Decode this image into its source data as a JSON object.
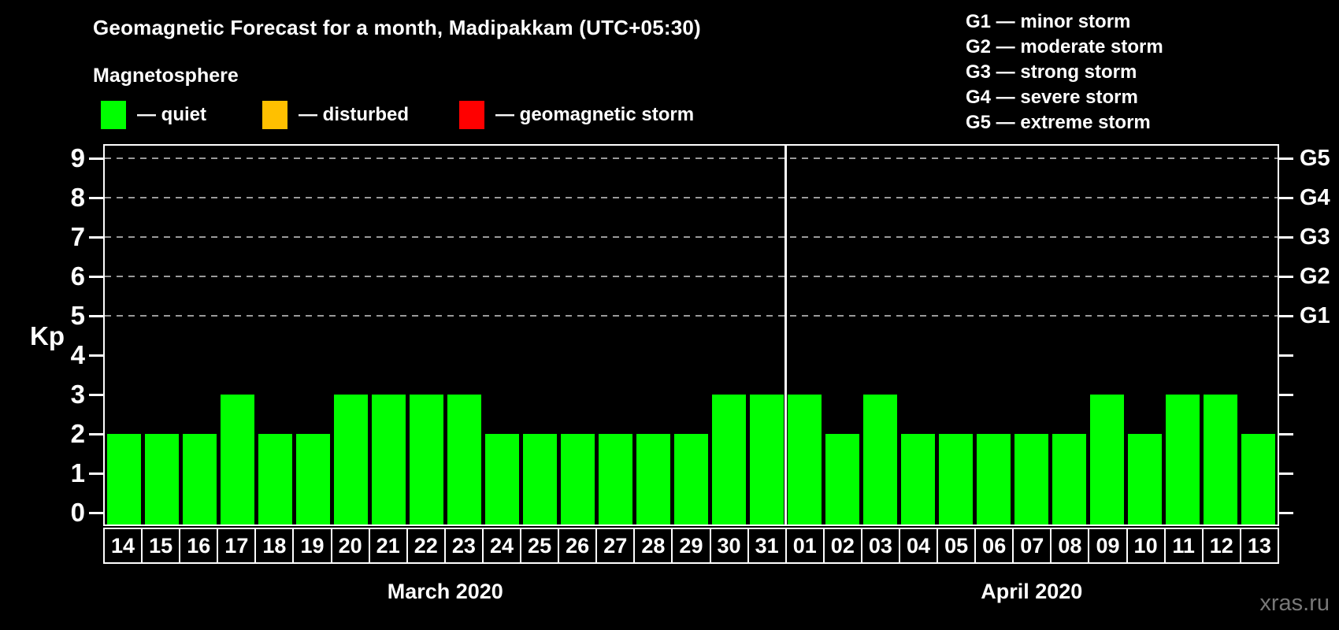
{
  "header": {
    "title": "Geomagnetic Forecast for a month, Madipakkam (UTC+05:30)",
    "subtitle": "Magnetosphere"
  },
  "legend": {
    "items": [
      {
        "name": "quiet",
        "color": "#00ff00",
        "label": "— quiet"
      },
      {
        "name": "disturbed",
        "color": "#ffc000",
        "label": "— disturbed"
      },
      {
        "name": "geomagnetic-storm",
        "color": "#ff0000",
        "label": "— geomagnetic storm"
      }
    ]
  },
  "g_scale_legend": {
    "lines": [
      "G1 — minor storm",
      "G2 — moderate storm",
      "G3 — strong storm",
      "G4 — severe storm",
      "G5 — extreme storm"
    ]
  },
  "axis": {
    "ylabel": "Kp"
  },
  "watermark": "xras.ru",
  "chart_data": {
    "type": "bar",
    "title": "Geomagnetic Forecast for a month, Madipakkam (UTC+05:30)",
    "ylabel": "Kp",
    "ylim": [
      0,
      9
    ],
    "yticks": [
      0,
      1,
      2,
      3,
      4,
      5,
      6,
      7,
      8,
      9
    ],
    "gridlines_at_kp": [
      5,
      6,
      7,
      8,
      9
    ],
    "grid_color": "#9a9a9a",
    "grid_style": "dashed",
    "legend_position": "top",
    "bar_color": "#00ff00",
    "bar_status_all": "quiet",
    "right_axis": [
      {
        "kp": 5,
        "label": "G1"
      },
      {
        "kp": 6,
        "label": "G2"
      },
      {
        "kp": 7,
        "label": "G3"
      },
      {
        "kp": 8,
        "label": "G4"
      },
      {
        "kp": 9,
        "label": "G5"
      }
    ],
    "months": [
      {
        "label": "March 2020",
        "days": [
          "14",
          "15",
          "16",
          "17",
          "18",
          "19",
          "20",
          "21",
          "22",
          "23",
          "24",
          "25",
          "26",
          "27",
          "28",
          "29",
          "30",
          "31"
        ],
        "values": [
          2,
          2,
          2,
          3,
          2,
          2,
          3,
          3,
          3,
          3,
          2,
          2,
          2,
          2,
          2,
          2,
          3,
          3
        ]
      },
      {
        "label": "April 2020",
        "days": [
          "01",
          "02",
          "03",
          "04",
          "05",
          "06",
          "07",
          "08",
          "09",
          "10",
          "11",
          "12",
          "13"
        ],
        "values": [
          3,
          2,
          3,
          2,
          2,
          2,
          2,
          2,
          3,
          2,
          3,
          3,
          2
        ]
      }
    ]
  }
}
